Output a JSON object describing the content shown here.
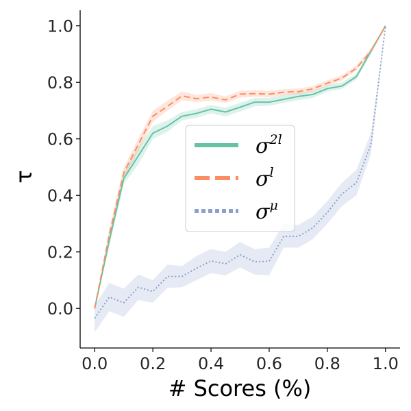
{
  "chart_data": {
    "type": "line",
    "xlabel": "# Scores (%)",
    "ylabel": "τ",
    "xlim": [
      -0.05,
      1.05
    ],
    "ylim": [
      -0.14,
      1.055
    ],
    "xticks": [
      "0.0",
      "0.2",
      "0.4",
      "0.6",
      "0.8",
      "1.0"
    ],
    "yticks": [
      "0.0",
      "0.2",
      "0.4",
      "0.6",
      "0.8",
      "1.0"
    ],
    "grid": false,
    "legend_position": "center",
    "series": [
      {
        "name": "σ^{2l}",
        "label_base": "σ",
        "label_sup": "2l",
        "color": "#66c2a5",
        "dash": "solid",
        "x": [
          0,
          0.05,
          0.1,
          0.15,
          0.2,
          0.25,
          0.3,
          0.35,
          0.4,
          0.45,
          0.5,
          0.55,
          0.6,
          0.65,
          0.7,
          0.75,
          0.8,
          0.85,
          0.9,
          0.95,
          1.0
        ],
        "y": [
          0.0,
          0.24,
          0.46,
          0.54,
          0.62,
          0.645,
          0.68,
          0.69,
          0.705,
          0.695,
          0.712,
          0.73,
          0.73,
          0.74,
          0.75,
          0.757,
          0.778,
          0.787,
          0.82,
          0.91,
          1.0
        ],
        "lower": [
          0.0,
          0.22,
          0.44,
          0.51,
          0.6,
          0.625,
          0.665,
          0.675,
          0.69,
          0.68,
          0.697,
          0.715,
          0.717,
          0.727,
          0.737,
          0.745,
          0.767,
          0.777,
          0.81,
          0.9,
          1.0
        ],
        "upper": [
          0.0,
          0.26,
          0.48,
          0.57,
          0.645,
          0.665,
          0.695,
          0.705,
          0.72,
          0.71,
          0.727,
          0.745,
          0.745,
          0.755,
          0.763,
          0.77,
          0.79,
          0.8,
          0.83,
          0.92,
          1.0
        ]
      },
      {
        "name": "σ^{l}",
        "label_base": "σ",
        "label_sup": "l",
        "color": "#fc8d62",
        "dash": "dashed",
        "x": [
          0,
          0.05,
          0.1,
          0.15,
          0.2,
          0.25,
          0.3,
          0.35,
          0.4,
          0.45,
          0.5,
          0.55,
          0.6,
          0.65,
          0.7,
          0.75,
          0.8,
          0.85,
          0.9,
          0.95,
          1.0
        ],
        "y": [
          0.0,
          0.26,
          0.48,
          0.58,
          0.68,
          0.715,
          0.752,
          0.742,
          0.748,
          0.738,
          0.758,
          0.76,
          0.758,
          0.765,
          0.767,
          0.777,
          0.797,
          0.815,
          0.85,
          0.91,
          1.0
        ],
        "lower": [
          0.0,
          0.24,
          0.46,
          0.555,
          0.66,
          0.7,
          0.737,
          0.73,
          0.735,
          0.727,
          0.746,
          0.749,
          0.747,
          0.754,
          0.757,
          0.767,
          0.787,
          0.806,
          0.842,
          0.905,
          1.0
        ],
        "upper": [
          0.0,
          0.28,
          0.5,
          0.6,
          0.7,
          0.735,
          0.768,
          0.755,
          0.762,
          0.75,
          0.77,
          0.772,
          0.77,
          0.776,
          0.778,
          0.787,
          0.807,
          0.825,
          0.86,
          0.92,
          1.0
        ]
      },
      {
        "name": "σ^{μ}",
        "label_base": "σ",
        "label_sup": "μ",
        "color": "#8da0cb",
        "dash": "dotted",
        "x": [
          0,
          0.05,
          0.1,
          0.15,
          0.2,
          0.25,
          0.3,
          0.35,
          0.4,
          0.45,
          0.5,
          0.55,
          0.6,
          0.65,
          0.7,
          0.75,
          0.8,
          0.85,
          0.9,
          0.95,
          1.0
        ],
        "y": [
          -0.035,
          0.04,
          0.02,
          0.075,
          0.06,
          0.113,
          0.113,
          0.142,
          0.168,
          0.158,
          0.19,
          0.165,
          0.167,
          0.255,
          0.255,
          0.285,
          0.34,
          0.405,
          0.445,
          0.58,
          1.0
        ],
        "lower": [
          -0.085,
          -0.01,
          -0.03,
          0.03,
          0.02,
          0.072,
          0.075,
          0.1,
          0.125,
          0.117,
          0.145,
          0.12,
          0.117,
          0.215,
          0.215,
          0.245,
          0.3,
          0.362,
          0.4,
          0.545,
          1.0
        ],
        "upper": [
          0.01,
          0.09,
          0.07,
          0.12,
          0.1,
          0.155,
          0.15,
          0.185,
          0.21,
          0.2,
          0.235,
          0.21,
          0.215,
          0.3,
          0.295,
          0.325,
          0.38,
          0.445,
          0.49,
          0.62,
          1.0
        ]
      }
    ]
  }
}
